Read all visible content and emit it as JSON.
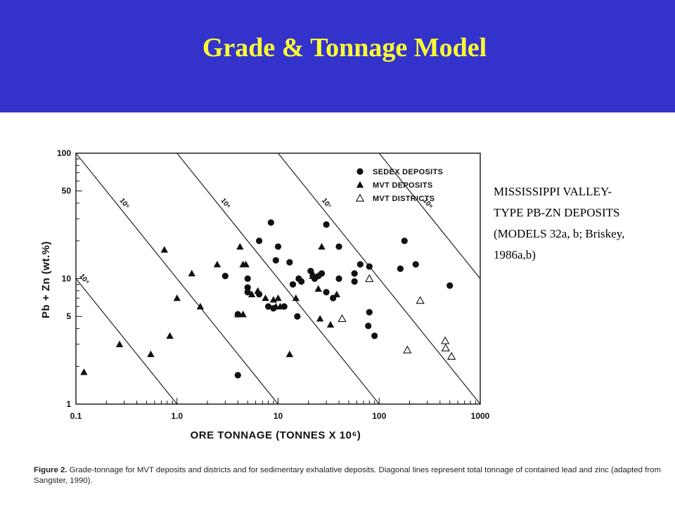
{
  "slide": {
    "title": "Grade & Tonnage Model",
    "colors": {
      "header_bg": "#3333cc",
      "title": "#ffff33"
    },
    "side_note": [
      "MISSISSIPPI VALLEY-",
      "TYPE PB-ZN DEPOSITS",
      "(MODELS 32a, b; Briskey,",
      "1986a,b)"
    ],
    "caption": {
      "label": "Figure 2.",
      "text": " Grade-tonnage for MVT deposits and districts and for sedimentary exhalative deposits.  Diagonal lines represent total tonnage of contained lead and zinc (adapted from Sangster, 1990)."
    }
  },
  "chart_data": {
    "type": "scatter",
    "xscale": "log",
    "yscale": "log",
    "xlabel": "ORE TONNAGE (TONNES X 10⁶)",
    "ylabel": "Pb + Zn (wt.%)",
    "xlim": [
      0.1,
      1000
    ],
    "ylim": [
      1,
      100
    ],
    "xticks": [
      0.1,
      1.0,
      10,
      100,
      1000
    ],
    "xtick_labels": [
      "0.1",
      "1.0",
      "10",
      "100",
      "1000"
    ],
    "yticks": [
      1,
      5,
      10,
      50,
      100
    ],
    "ytick_labels": [
      "1",
      "5",
      "10",
      "50",
      "100"
    ],
    "grid": false,
    "legend_position": "top-right",
    "iso_lines": [
      {
        "tonnes": 10000,
        "label": "10⁴"
      },
      {
        "tonnes": 100000,
        "label": "10⁵"
      },
      {
        "tonnes": 1000000,
        "label": "10⁶"
      },
      {
        "tonnes": 10000000,
        "label": "10⁷"
      },
      {
        "tonnes": 100000000,
        "label": "10⁸"
      }
    ],
    "series": [
      {
        "name": "SEDEX DEPOSITS",
        "marker": "circle-filled",
        "points": [
          [
            8.5,
            28
          ],
          [
            6.5,
            20
          ],
          [
            10,
            18
          ],
          [
            9.5,
            14
          ],
          [
            13,
            13.5
          ],
          [
            30,
            27
          ],
          [
            40,
            18
          ],
          [
            178,
            20
          ],
          [
            230,
            13
          ],
          [
            5,
            10
          ],
          [
            3,
            10.5
          ],
          [
            5,
            8.5
          ],
          [
            5,
            7.8
          ],
          [
            6.5,
            7.5
          ],
          [
            8,
            6
          ],
          [
            9,
            5.8
          ],
          [
            11.5,
            6
          ],
          [
            4,
            5.2
          ],
          [
            15.5,
            5
          ],
          [
            14,
            9
          ],
          [
            16,
            10
          ],
          [
            17,
            9.5
          ],
          [
            21,
            11.5
          ],
          [
            23,
            10
          ],
          [
            25,
            10.5
          ],
          [
            27,
            11
          ],
          [
            30,
            7.8
          ],
          [
            35,
            7
          ],
          [
            40,
            10
          ],
          [
            57,
            11
          ],
          [
            57,
            9.5
          ],
          [
            65,
            13
          ],
          [
            80,
            12.5
          ],
          [
            162,
            12
          ],
          [
            80,
            5.4
          ],
          [
            78,
            4.2
          ],
          [
            90,
            3.5
          ],
          [
            500,
            8.8
          ],
          [
            4,
            1.7
          ]
        ]
      },
      {
        "name": "MVT DEPOSITS",
        "marker": "triangle-filled",
        "points": [
          [
            0.12,
            1.8
          ],
          [
            0.27,
            3
          ],
          [
            0.55,
            2.5
          ],
          [
            0.85,
            3.5
          ],
          [
            0.75,
            17
          ],
          [
            1.4,
            11
          ],
          [
            2.5,
            13
          ],
          [
            4.2,
            18
          ],
          [
            4.5,
            13
          ],
          [
            4.8,
            13
          ],
          [
            1.0,
            7
          ],
          [
            1.7,
            6
          ],
          [
            4,
            5.2
          ],
          [
            4.5,
            5.2
          ],
          [
            5.5,
            7.5
          ],
          [
            6.3,
            8
          ],
          [
            7.5,
            7
          ],
          [
            9,
            6.8
          ],
          [
            10,
            7
          ],
          [
            9.5,
            6
          ],
          [
            10.5,
            6
          ],
          [
            13,
            2.5
          ],
          [
            15,
            7
          ],
          [
            22,
            11
          ],
          [
            22,
            10.5
          ],
          [
            25,
            8.3
          ],
          [
            26,
            4.8
          ],
          [
            27,
            18
          ],
          [
            33,
            4.3
          ],
          [
            38,
            7.5
          ]
        ]
      },
      {
        "name": "MVT DISTRICTS",
        "marker": "triangle-open",
        "points": [
          [
            43,
            4.8
          ],
          [
            80,
            10
          ],
          [
            190,
            2.7
          ],
          [
            255,
            6.7
          ],
          [
            450,
            3.2
          ],
          [
            455,
            2.8
          ],
          [
            520,
            2.4
          ]
        ]
      }
    ]
  }
}
